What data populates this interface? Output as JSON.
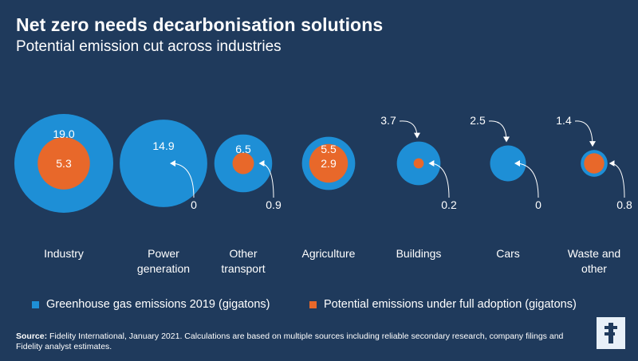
{
  "header": {
    "title": "Net zero needs decarbonisation solutions",
    "subtitle": "Potential emission cut across industries"
  },
  "chart_data": {
    "type": "bubble",
    "categories": [
      [
        "Industry"
      ],
      [
        "Power",
        "generation"
      ],
      [
        "Other",
        "transport"
      ],
      [
        "Agriculture"
      ],
      [
        "Buildings"
      ],
      [
        "Cars"
      ],
      [
        "Waste and",
        "other"
      ]
    ],
    "series": [
      {
        "name": "Greenhouse gas emissions 2019 (gigatons)",
        "color": "#1e8fd6",
        "values": [
          19.0,
          14.9,
          6.5,
          5.5,
          3.7,
          2.5,
          1.4
        ],
        "labels": [
          "19.0",
          "14.9",
          "6.5",
          "5.5",
          "3.7",
          "2.5",
          "1.4"
        ]
      },
      {
        "name": "Potential emissions under full adoption (gigatons)",
        "color": "#e8682a",
        "values": [
          5.3,
          0,
          0.9,
          2.9,
          0.2,
          0,
          0.8
        ],
        "labels": [
          "5.3",
          "0",
          "0.9",
          "2.9",
          "0.2",
          "0",
          "0.8"
        ]
      }
    ]
  },
  "legend": {
    "items": [
      {
        "label": "Greenhouse gas emissions 2019 (gigatons)",
        "color": "#1e8fd6"
      },
      {
        "label": "Potential emissions under full adoption (gigatons)",
        "color": "#e8682a"
      }
    ]
  },
  "footer": {
    "source_label": "Source:",
    "source_text": " Fidelity International, January 2021. Calculations are based on multiple sources including reliable secondary research, company filings and Fidelity analyst estimates.",
    "logo_letter": "F"
  }
}
